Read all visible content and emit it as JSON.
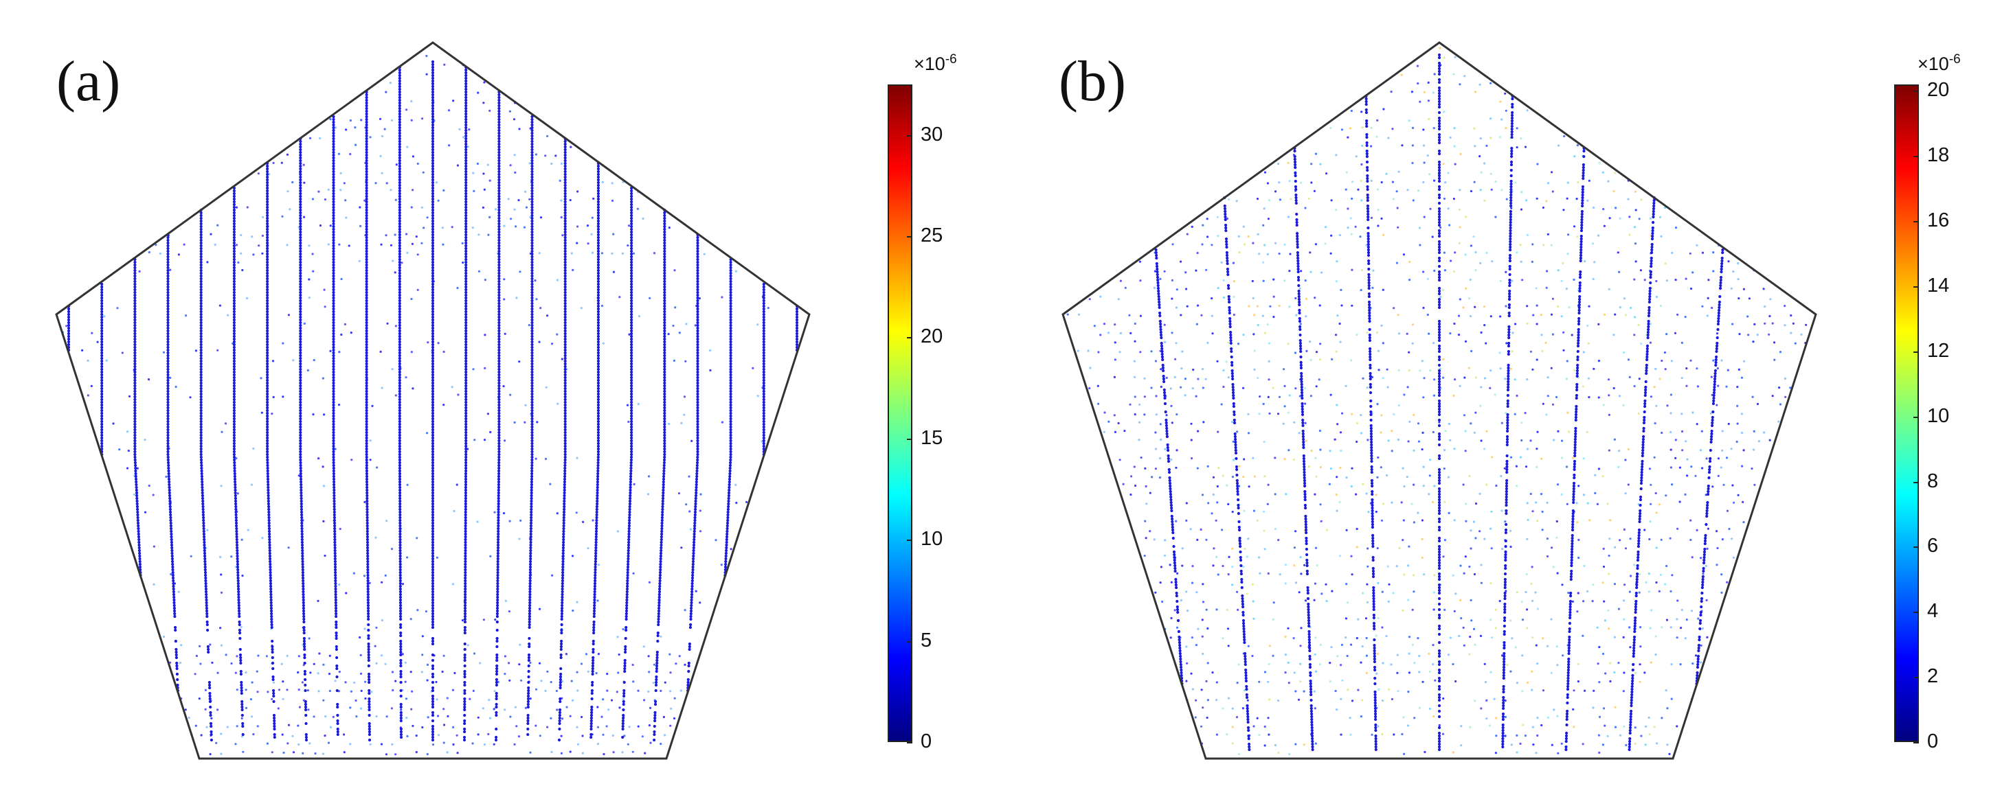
{
  "colormap": [
    "#00007f",
    "#0000ff",
    "#007fff",
    "#00ffff",
    "#7fff7f",
    "#ffff00",
    "#ff7f00",
    "#ff0000",
    "#7f0000"
  ],
  "marker_color": "#1a1adb",
  "outline_color": "#333333",
  "panels": [
    {
      "label": "(a)",
      "colorbar": {
        "multiplier_base": "×10",
        "multiplier_exp": "-6",
        "min": 0,
        "max": 32.5,
        "ticks": [
          "0",
          "5",
          "10",
          "15",
          "20",
          "25",
          "30"
        ]
      },
      "pattern": "vertical-lines",
      "line_count": 23
    },
    {
      "label": "(b)",
      "colorbar": {
        "multiplier_base": "×10",
        "multiplier_exp": "-6",
        "min": 0,
        "max": 20.2,
        "ticks": [
          "0",
          "2",
          "4",
          "6",
          "8",
          "10",
          "12",
          "14",
          "16",
          "18",
          "20"
        ]
      },
      "pattern": "vertical-bands",
      "line_count": 9
    }
  ]
}
